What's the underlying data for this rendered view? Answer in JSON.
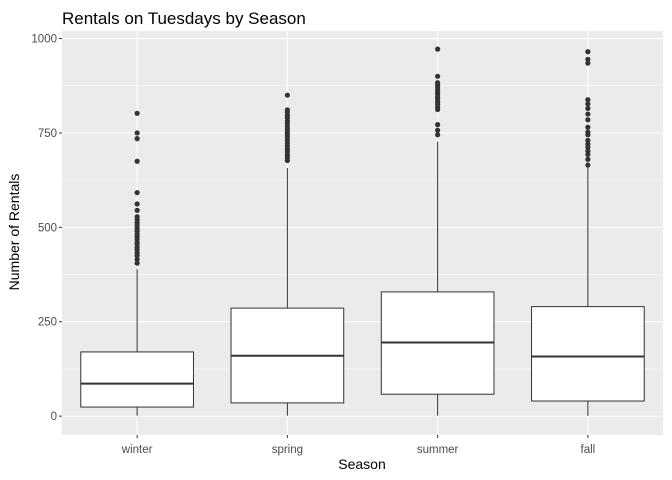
{
  "chart_data": {
    "type": "boxplot",
    "title": "Rentals on Tuesdays by Season",
    "xlabel": "Season",
    "ylabel": "Number of Rentals",
    "ylim": [
      -50,
      1020
    ],
    "yticks": [
      0,
      250,
      500,
      750,
      1000
    ],
    "categories": [
      "winter",
      "spring",
      "summer",
      "fall"
    ],
    "grid": true,
    "colors": {
      "panel": "#ebebeb",
      "grid_major": "#ffffff",
      "box_fill": "#ffffff",
      "box_line": "#333333",
      "outlier": "#333333",
      "tick_text": "#4d4d4d"
    },
    "boxes": [
      {
        "category": "winter",
        "min": 1,
        "q1": 24,
        "median": 86,
        "q3": 170,
        "max": 389,
        "outliers": [
          405,
          415,
          425,
          432,
          440,
          447,
          455,
          460,
          468,
          475,
          482,
          490,
          497,
          505,
          512,
          520,
          528,
          545,
          562,
          592,
          675,
          735,
          750,
          802
        ]
      },
      {
        "category": "spring",
        "min": 1,
        "q1": 35,
        "median": 160,
        "q3": 286,
        "max": 657,
        "outliers": [
          677,
          685,
          692,
          700,
          707,
          715,
          722,
          730,
          738,
          745,
          752,
          760,
          767,
          775,
          782,
          790,
          797,
          805,
          811,
          850
        ]
      },
      {
        "category": "summer",
        "min": 1,
        "q1": 58,
        "median": 195,
        "q3": 329,
        "max": 727,
        "outliers": [
          745,
          757,
          772,
          812,
          818,
          826,
          832,
          840,
          845,
          852,
          858,
          865,
          872,
          877,
          883,
          900,
          972
        ]
      },
      {
        "category": "fall",
        "min": 1,
        "q1": 40,
        "median": 158,
        "q3": 290,
        "max": 664,
        "outliers": [
          665,
          680,
          693,
          702,
          712,
          720,
          730,
          745,
          752,
          765,
          785,
          800,
          815,
          827,
          838,
          935,
          945,
          965
        ]
      }
    ]
  }
}
